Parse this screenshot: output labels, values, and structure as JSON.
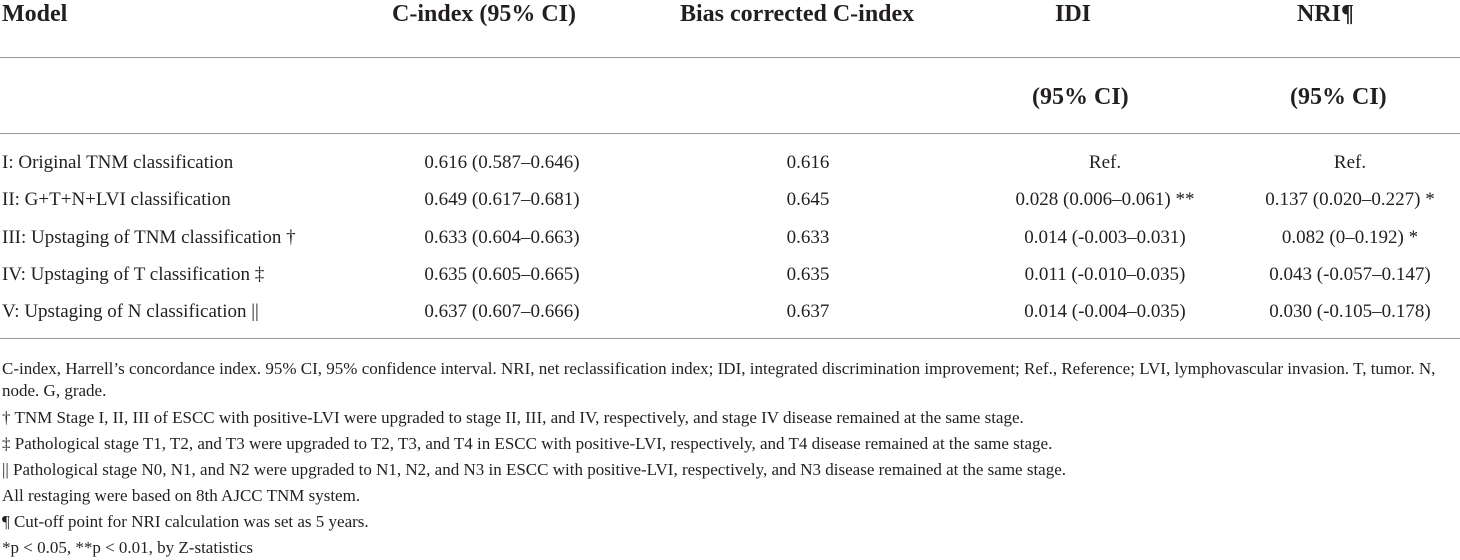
{
  "header": {
    "model": "Model",
    "cindex": "C-index (95% CI)",
    "bias": "Bias corrected C-index",
    "idi": "IDI",
    "nri": "NRI¶",
    "idi_sub": "(95% CI)",
    "nri_sub": "(95% CI)"
  },
  "rows": [
    {
      "model": "I: Original TNM classification",
      "cindex": "0.616 (0.587–0.646)",
      "bias": "0.616",
      "idi": "Ref.",
      "nri": "Ref."
    },
    {
      "model": "II: G+T+N+LVI classification",
      "cindex": "0.649 (0.617–0.681)",
      "bias": "0.645",
      "idi": "0.028 (0.006–0.061) **",
      "nri": "0.137 (0.020–0.227) *"
    },
    {
      "model": "III: Upstaging of TNM classification †",
      "cindex": "0.633 (0.604–0.663)",
      "bias": "0.633",
      "idi": "0.014 (-0.003–0.031)",
      "nri": "0.082 (0–0.192) *"
    },
    {
      "model": "IV: Upstaging of T classification ‡",
      "cindex": "0.635 (0.605–0.665)",
      "bias": "0.635",
      "idi": "0.011 (-0.010–0.035)",
      "nri": "0.043 (-0.057–0.147)"
    },
    {
      "model": "V: Upstaging of N classification ||",
      "cindex": "0.637 (0.607–0.666)",
      "bias": "0.637",
      "idi": "0.014 (-0.004–0.035)",
      "nri": "0.030 (-0.105–0.178)"
    }
  ],
  "footnotes": [
    "C-index, Harrell’s concordance index. 95% CI, 95% confidence interval. NRI, net reclassification index; IDI, integrated discrimination improvement; Ref., Reference; LVI, lymphovascular invasion. T, tumor. N, node. G, grade.",
    "† TNM Stage I, II, III of ESCC with positive-LVI were upgraded to stage II, III, and IV, respectively, and stage IV disease remained at the same stage.",
    "‡ Pathological stage T1, T2, and T3 were upgraded to T2, T3, and T4 in ESCC with positive-LVI, respectively, and T4 disease remained at the same stage.",
    "|| Pathological stage N0, N1, and N2 were upgraded to N1, N2, and N3 in ESCC with positive-LVI, respectively, and N3 disease remained at the same stage.",
    "All restaging were based on 8th AJCC TNM system.",
    "¶ Cut-off point for NRI calculation was set as 5 years.",
    "*p < 0.05, **p < 0.01, by Z-statistics"
  ]
}
